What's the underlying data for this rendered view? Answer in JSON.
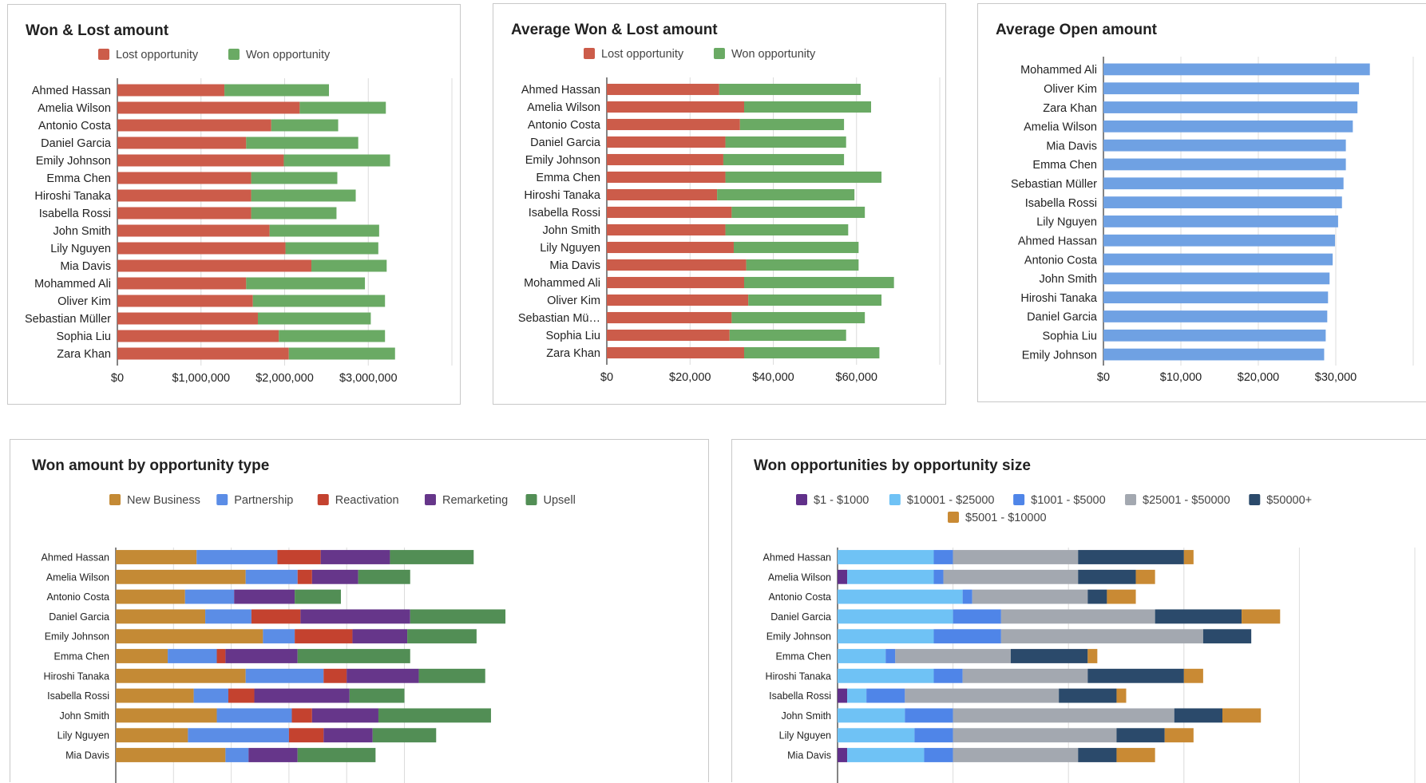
{
  "colors": {
    "lost": "#cc5c4a",
    "won": "#6aaa64",
    "open": "#6fa1e3",
    "new_business": "#c48a35",
    "partnership": "#5b8de6",
    "reactivation": "#c4422f",
    "remarketing": "#66368a",
    "upsell": "#528e55",
    "size_1_1000": "#61308a",
    "size_10001_25000": "#6fc2f5",
    "size_1001_5000": "#4f85e8",
    "size_25001_50000": "#a3a8b0",
    "size_50000_plus": "#2b4a6b",
    "size_5001_10000": "#c98a34"
  },
  "chart_data": [
    {
      "type": "bar",
      "orientation": "horizontal",
      "stacked": true,
      "title": "Won & Lost amount",
      "categories": [
        "Ahmed Hassan",
        "Amelia Wilson",
        "Antonio Costa",
        "Daniel Garcia",
        "Emily Johnson",
        "Emma Chen",
        "Hiroshi Tanaka",
        "Isabella Rossi",
        "John Smith",
        "Lily Nguyen",
        "Mia Davis",
        "Mohammed Ali",
        "Oliver Kim",
        "Sebastian Müller",
        "Sophia Liu",
        "Zara Khan"
      ],
      "series": [
        {
          "name": "Lost opportunity",
          "color_key": "lost",
          "values": [
            1280000,
            2180000,
            1840000,
            1540000,
            1990000,
            1600000,
            1600000,
            1600000,
            1820000,
            2010000,
            2320000,
            1540000,
            1620000,
            1680000,
            1930000,
            2050000
          ]
        },
        {
          "name": "Won opportunity",
          "color_key": "won",
          "values": [
            1250000,
            1030000,
            800000,
            1340000,
            1270000,
            1030000,
            1250000,
            1020000,
            1310000,
            1110000,
            900000,
            1420000,
            1580000,
            1350000,
            1270000,
            1270000
          ]
        }
      ],
      "legend": [
        "Lost opportunity",
        "Won opportunity"
      ],
      "xlim": [
        0,
        4000000
      ],
      "ticks": [
        0,
        1000000,
        2000000,
        3000000
      ],
      "tick_labels": [
        "$0",
        "$1,000,000",
        "$2,000,000",
        "$3,000,000"
      ]
    },
    {
      "type": "bar",
      "orientation": "horizontal",
      "stacked": true,
      "title": "Average Won & Lost amount",
      "categories": [
        "Ahmed Hassan",
        "Amelia Wilson",
        "Antonio Costa",
        "Daniel Garcia",
        "Emily Johnson",
        "Emma Chen",
        "Hiroshi Tanaka",
        "Isabella Rossi",
        "John Smith",
        "Lily Nguyen",
        "Mia Davis",
        "Mohammed Ali",
        "Oliver Kim",
        "Sebastian Mü…",
        "Sophia Liu",
        "Zara Khan"
      ],
      "series": [
        {
          "name": "Lost opportunity",
          "color_key": "lost",
          "values": [
            27000,
            33000,
            32000,
            28500,
            28000,
            28500,
            26500,
            30000,
            28500,
            30500,
            33500,
            33000,
            34000,
            30000,
            29500,
            33000
          ]
        },
        {
          "name": "Won opportunity",
          "color_key": "won",
          "values": [
            34000,
            30500,
            25000,
            29000,
            29000,
            37500,
            33000,
            32000,
            29500,
            30000,
            27000,
            36000,
            32000,
            32000,
            28000,
            32500
          ]
        }
      ],
      "legend": [
        "Lost opportunity",
        "Won opportunity"
      ],
      "xlim": [
        0,
        80000
      ],
      "ticks": [
        0,
        20000,
        40000,
        60000
      ],
      "tick_labels": [
        "$0",
        "$20,000",
        "$40,000",
        "$60,000"
      ]
    },
    {
      "type": "bar",
      "orientation": "horizontal",
      "stacked": false,
      "title": "Average Open amount",
      "categories": [
        "Mohammed Ali",
        "Oliver Kim",
        "Zara Khan",
        "Amelia Wilson",
        "Mia Davis",
        "Emma Chen",
        "Sebastian Müller",
        "Isabella Rossi",
        "Lily Nguyen",
        "Ahmed Hassan",
        "Antonio Costa",
        "John Smith",
        "Hiroshi Tanaka",
        "Daniel Garcia",
        "Sophia Liu",
        "Emily Johnson"
      ],
      "series": [
        {
          "name": "Average Open amount",
          "color_key": "open",
          "values": [
            34400,
            33000,
            32800,
            32200,
            31300,
            31300,
            31000,
            30800,
            30300,
            29900,
            29600,
            29200,
            29000,
            28900,
            28700,
            28500
          ]
        }
      ],
      "xlim": [
        0,
        40000
      ],
      "ticks": [
        0,
        10000,
        20000,
        30000
      ],
      "tick_labels": [
        "$0",
        "$10,000",
        "$20,000",
        "$30,000"
      ]
    },
    {
      "type": "bar",
      "orientation": "horizontal",
      "stacked": true,
      "title": "Won amount by opportunity type",
      "categories": [
        "Ahmed Hassan",
        "Amelia Wilson",
        "Antonio Costa",
        "Daniel Garcia",
        "Emily Johnson",
        "Emma Chen",
        "Hiroshi Tanaka",
        "Isabella Rossi",
        "John Smith",
        "Lily Nguyen",
        "Mia Davis"
      ],
      "series": [
        {
          "name": "New Business",
          "color_key": "new_business",
          "values": [
            280000,
            450000,
            240000,
            310000,
            510000,
            180000,
            450000,
            270000,
            350000,
            250000,
            380000
          ]
        },
        {
          "name": "Partnership",
          "color_key": "partnership",
          "values": [
            280000,
            180000,
            170000,
            160000,
            110000,
            170000,
            270000,
            120000,
            260000,
            350000,
            80000
          ]
        },
        {
          "name": "Reactivation",
          "color_key": "reactivation",
          "values": [
            150000,
            50000,
            0,
            170000,
            200000,
            30000,
            80000,
            90000,
            70000,
            120000,
            0
          ]
        },
        {
          "name": "Remarketing",
          "color_key": "remarketing",
          "values": [
            240000,
            160000,
            210000,
            380000,
            190000,
            250000,
            250000,
            330000,
            230000,
            170000,
            170000
          ]
        },
        {
          "name": "Upsell",
          "color_key": "upsell",
          "values": [
            290000,
            180000,
            160000,
            330000,
            240000,
            390000,
            230000,
            190000,
            390000,
            220000,
            270000
          ]
        }
      ],
      "legend": [
        "New Business",
        "Partnership",
        "Reactivation",
        "Remarketing",
        "Upsell"
      ],
      "xlim": [
        0,
        2000000
      ]
    },
    {
      "type": "bar",
      "orientation": "horizontal",
      "stacked": true,
      "title": "Won opportunities by opportunity size",
      "categories": [
        "Ahmed Hassan",
        "Amelia Wilson",
        "Antonio Costa",
        "Daniel Garcia",
        "Emily Johnson",
        "Emma Chen",
        "Hiroshi Tanaka",
        "Isabella Rossi",
        "John Smith",
        "Lily Nguyen",
        "Mia Davis"
      ],
      "series": [
        {
          "name": "$1 - $1000",
          "color_key": "size_1_1000",
          "values": [
            0,
            1,
            0,
            0,
            0,
            0,
            0,
            1,
            0,
            0,
            1
          ]
        },
        {
          "name": "$10001 - $25000",
          "color_key": "size_10001_25000",
          "values": [
            10,
            9,
            13,
            12,
            10,
            5,
            10,
            2,
            7,
            8,
            8
          ]
        },
        {
          "name": "$1001 - $5000",
          "color_key": "size_1001_5000",
          "values": [
            2,
            1,
            1,
            5,
            7,
            1,
            3,
            4,
            5,
            4,
            3
          ]
        },
        {
          "name": "$25001 - $50000",
          "color_key": "size_25001_50000",
          "values": [
            13,
            14,
            12,
            16,
            21,
            12,
            13,
            16,
            23,
            17,
            13
          ]
        },
        {
          "name": "$50000+",
          "color_key": "size_50000_plus",
          "values": [
            11,
            6,
            2,
            9,
            5,
            8,
            10,
            6,
            5,
            5,
            4
          ]
        },
        {
          "name": "$5001 - $10000",
          "color_key": "size_5001_10000",
          "values": [
            1,
            2,
            3,
            4,
            0,
            1,
            2,
            1,
            4,
            3,
            4
          ]
        }
      ],
      "legend": [
        "$1 - $1000",
        "$10001 - $25000",
        "$1001 - $5000",
        "$25001 - $50000",
        "$50000+",
        "$5001 - $10000"
      ],
      "xlim": [
        0,
        60
      ]
    }
  ]
}
